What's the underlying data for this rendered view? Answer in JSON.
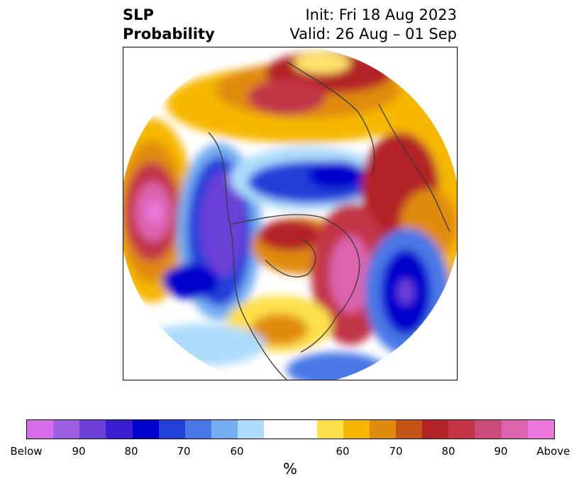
{
  "title": {
    "left_line1": "SLP",
    "left_line2": "Probability",
    "right_line1": "Init: Fri 18 Aug 2023",
    "right_line2": "Valid: 26 Aug – 01 Sep"
  },
  "colorbar": {
    "unit": "%",
    "colors": [
      "#d56ee8",
      "#9e5fe3",
      "#6b3fd8",
      "#3a1fd3",
      "#0000cc",
      "#2340d9",
      "#4a78e6",
      "#74adf2",
      "#addcfb",
      "#ffffff",
      "#ffffff",
      "#fde04a",
      "#f6b700",
      "#e08b0e",
      "#c55417",
      "#b32426",
      "#c23446",
      "#ca4b7a",
      "#dc63ad",
      "#ec78de"
    ],
    "tick_labels": [
      "Below",
      "90",
      "80",
      "70",
      "60",
      "60",
      "70",
      "80",
      "90",
      "Above"
    ]
  },
  "map": {
    "projection": "north-polar-stereographic",
    "blobs": [
      {
        "color": "#f6b700"
      },
      {
        "color": "#e08b0e"
      },
      {
        "color": "#b32426"
      }
    ]
  }
}
